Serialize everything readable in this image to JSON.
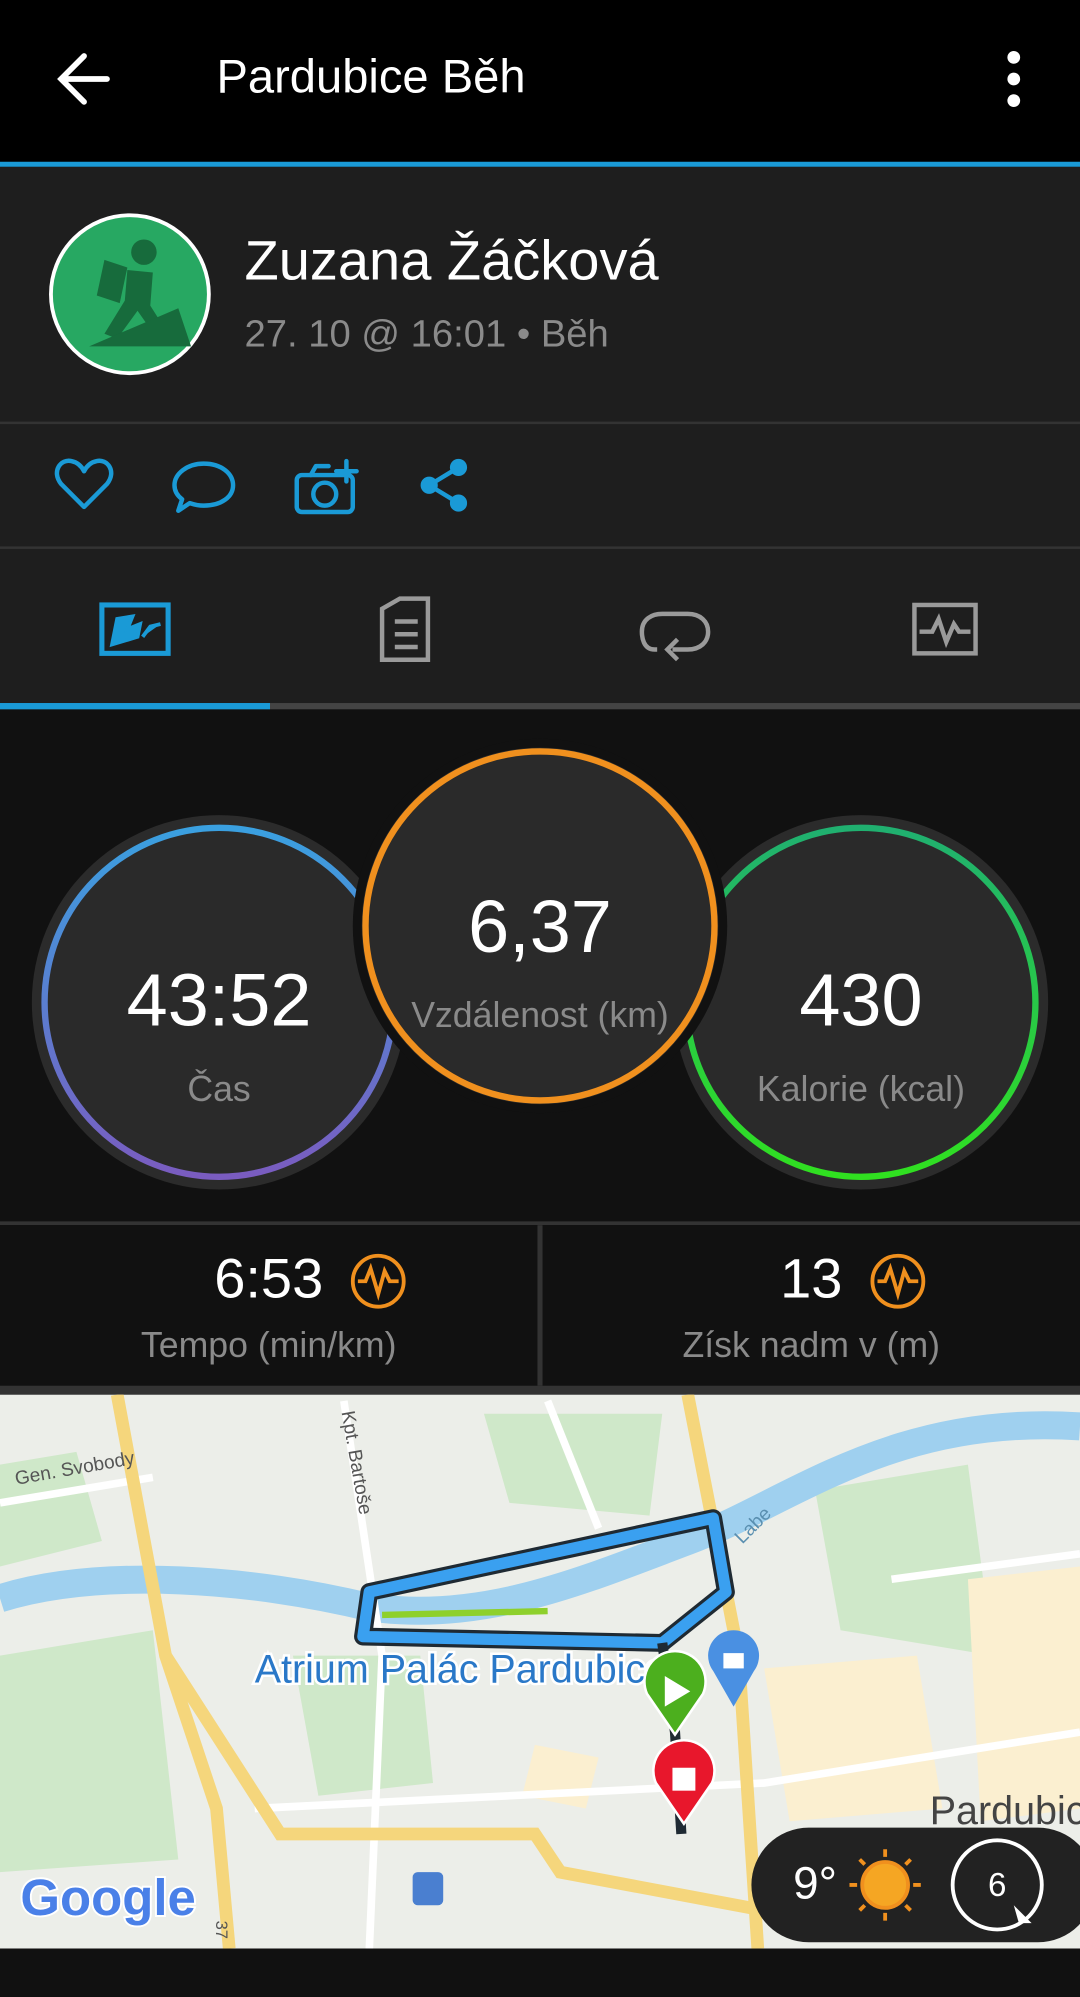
{
  "header": {
    "title": "Pardubice Běh"
  },
  "profile": {
    "name": "Zuzana Žáčková",
    "subtitle": "27. 10 @ 16:01 • Běh"
  },
  "stats": [
    {
      "value": "43:52",
      "label": "Čas"
    },
    {
      "value": "6,37",
      "label": "Vzdálenost (km)"
    },
    {
      "value": "430",
      "label": "Kalorie (kcal)"
    },
    {
      "value": "6:53",
      "label": "Tempo (min/km)"
    },
    {
      "value": "13",
      "label": "Získ nadm v (m)"
    }
  ],
  "map": {
    "streets": [
      "Gen. Svobody",
      "Kpt. Bartoše",
      "Labe",
      "37"
    ],
    "place": "Atrium Palác Pardubice",
    "city": "Pardubice",
    "brand": "Google"
  },
  "weather": {
    "temperature": "9°",
    "wind": "6"
  }
}
